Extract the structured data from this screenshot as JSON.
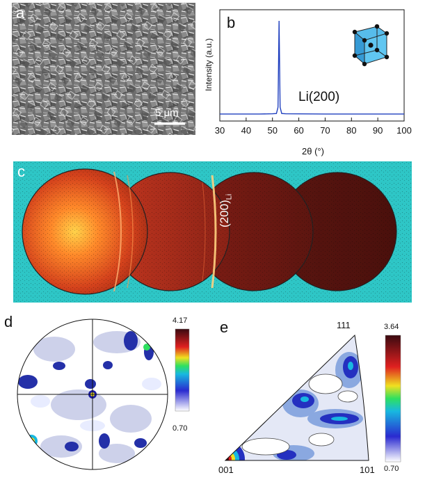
{
  "panel_a": {
    "letter": "a",
    "scale_bar_label": "5 μm"
  },
  "panel_b": {
    "letter": "b",
    "peak_label": "Li(200)",
    "chart_data": {
      "type": "line",
      "xlabel": "2θ (°)",
      "ylabel": "Intensity (a.u.)",
      "xlim": [
        30,
        100
      ],
      "x_ticks": [
        30,
        40,
        50,
        60,
        70,
        80,
        90,
        100
      ],
      "series": [
        {
          "color": "#1f3fbf",
          "x": [
            30,
            45,
            50,
            51.5,
            52.1,
            52.5,
            52.9,
            53.5,
            55,
            70,
            85,
            100
          ],
          "y": [
            3,
            3,
            3.2,
            3.5,
            10,
            100,
            10,
            3.5,
            3.2,
            3,
            3,
            3
          ]
        }
      ]
    }
  },
  "panel_c": {
    "letter": "c",
    "ring_label": "(200)",
    "ring_label_sub": "Li"
  },
  "panel_d": {
    "letter": "d",
    "scale_max": "4.17",
    "scale_min": "0.70"
  },
  "panel_e": {
    "letter": "e",
    "scale_max": "3.64",
    "scale_min": "0.70",
    "corner_top": "111",
    "corner_left": "001",
    "corner_right": "101"
  }
}
